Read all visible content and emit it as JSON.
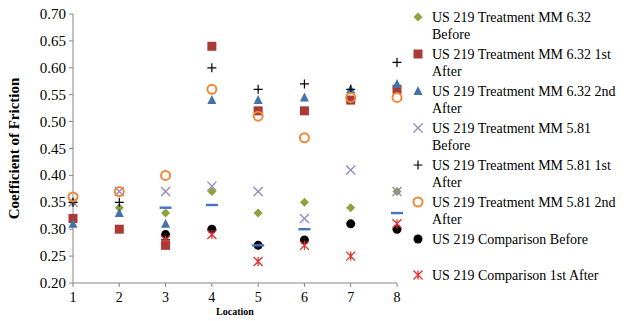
{
  "chart_data": {
    "type": "scatter",
    "x_label": "Location",
    "y_label": "Coefficient of Friction",
    "x": [
      1,
      2,
      3,
      4,
      5,
      6,
      7,
      8
    ],
    "xlim": [
      1,
      8
    ],
    "xticks": [
      1,
      2,
      3,
      4,
      5,
      6,
      7,
      8
    ],
    "ylim": [
      0.2,
      0.7
    ],
    "yticks": [
      {
        "value": 0.2,
        "label": "0.20"
      },
      {
        "value": 0.25,
        "label": "0.25"
      },
      {
        "value": 0.3,
        "label": "0.30"
      },
      {
        "value": 0.35,
        "label": "0.35"
      },
      {
        "value": 0.4,
        "label": "0.40"
      },
      {
        "value": 0.45,
        "label": "0.45"
      },
      {
        "value": 0.5,
        "label": "0.50"
      },
      {
        "value": 0.55,
        "label": "0.55"
      },
      {
        "value": 0.6,
        "label": "0.60"
      },
      {
        "value": 0.65,
        "label": "0.65"
      },
      {
        "value": 0.7,
        "label": "0.70"
      }
    ],
    "grid": false,
    "legend": "right",
    "series": [
      {
        "name": "US 219 Treatment MM 6.32 Before",
        "color": "#8aa33c",
        "marker": "diamond",
        "values": [
          0.35,
          0.34,
          0.33,
          0.37,
          0.33,
          0.35,
          0.34,
          0.37
        ]
      },
      {
        "name": "US 219 Treatment MM 6.32 1st After",
        "color": "#a93a35",
        "marker": "square",
        "values": [
          0.32,
          0.3,
          0.27,
          0.64,
          0.52,
          0.52,
          0.54,
          0.56
        ]
      },
      {
        "name": "US 219 Treatment MM 6.32 2nd After",
        "color": "#4572a7",
        "marker": "triangle",
        "values": [
          0.31,
          0.33,
          0.31,
          0.54,
          0.54,
          0.545,
          0.56,
          0.57
        ]
      },
      {
        "name": "US 219 Treatment MM 5.81 Before",
        "color": "#9584c0",
        "marker": "x",
        "values": [
          0.35,
          0.37,
          0.37,
          0.38,
          0.37,
          0.32,
          0.41,
          0.37
        ]
      },
      {
        "name": "US 219 Treatment MM 5.81 1st After",
        "color": "#000000",
        "marker": "plus",
        "values": [
          0.35,
          0.35,
          0.28,
          0.6,
          0.56,
          0.57,
          0.56,
          0.61
        ]
      },
      {
        "name": "US 219 Treatment MM 5.81 2nd After",
        "color": "#f0883a",
        "marker": "circle-open",
        "values": [
          0.36,
          0.37,
          0.4,
          0.56,
          0.51,
          0.47,
          0.545,
          0.545
        ]
      },
      {
        "name": "US 219 Comparison Before",
        "color": "#000000",
        "marker": "circle",
        "values": [
          null,
          null,
          0.29,
          0.3,
          0.27,
          0.28,
          0.31,
          0.3
        ]
      },
      {
        "name": "US 219 Comparison 1st After",
        "color": "#e03030",
        "marker": "star",
        "values": [
          null,
          null,
          0.28,
          0.29,
          0.24,
          0.27,
          0.25,
          0.31
        ]
      },
      {
        "color": "#4472c4",
        "marker": "dash",
        "values": [
          null,
          null,
          0.34,
          0.345,
          0.27,
          0.3,
          null,
          0.33
        ]
      }
    ]
  }
}
